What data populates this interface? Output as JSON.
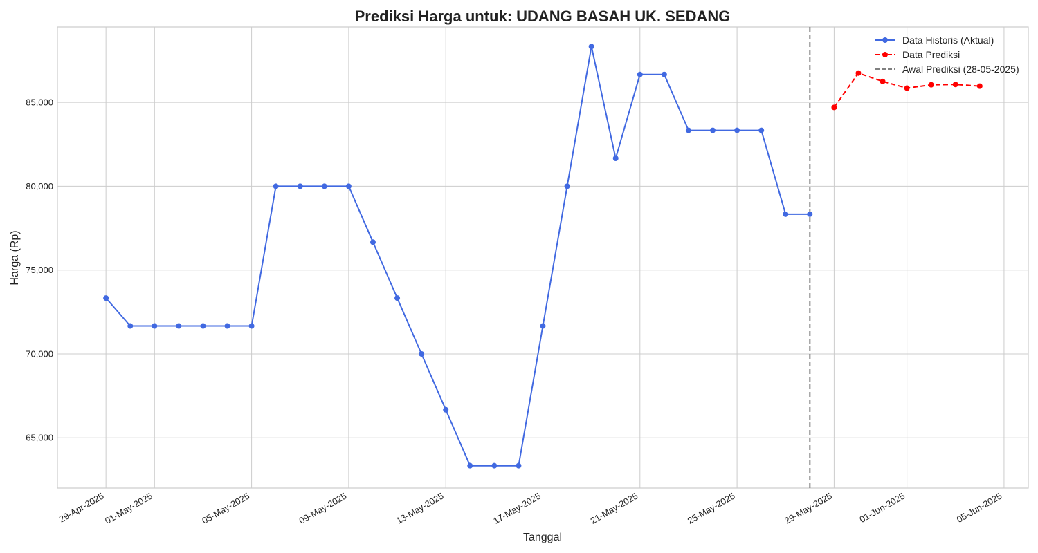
{
  "chart_data": {
    "type": "line",
    "title": "Prediksi Harga untuk: UDANG BASAH UK. SEDANG",
    "xlabel": "Tanggal",
    "ylabel": "Harga (Rp)",
    "ylim": [
      62000,
      89500
    ],
    "xlim": [
      "2025-04-27",
      "2025-06-06"
    ],
    "grid": true,
    "legend_position": "top-right",
    "x_ticks": [
      {
        "date": "2025-04-29",
        "label": "29-Apr-2025"
      },
      {
        "date": "2025-05-01",
        "label": "01-May-2025"
      },
      {
        "date": "2025-05-05",
        "label": "05-May-2025"
      },
      {
        "date": "2025-05-09",
        "label": "09-May-2025"
      },
      {
        "date": "2025-05-13",
        "label": "13-May-2025"
      },
      {
        "date": "2025-05-17",
        "label": "17-May-2025"
      },
      {
        "date": "2025-05-21",
        "label": "21-May-2025"
      },
      {
        "date": "2025-05-25",
        "label": "25-May-2025"
      },
      {
        "date": "2025-05-29",
        "label": "29-May-2025"
      },
      {
        "date": "2025-06-01",
        "label": "01-Jun-2025"
      },
      {
        "date": "2025-06-05",
        "label": "05-Jun-2025"
      }
    ],
    "y_ticks": [
      {
        "value": 65000,
        "label": "65,000"
      },
      {
        "value": 70000,
        "label": "70,000"
      },
      {
        "value": 75000,
        "label": "75,000"
      },
      {
        "value": 80000,
        "label": "80,000"
      },
      {
        "value": 85000,
        "label": "85,000"
      }
    ],
    "series": [
      {
        "name": "Data Historis (Aktual)",
        "color": "#4169e1",
        "line_style": "solid",
        "x": [
          "2025-04-29",
          "2025-04-30",
          "2025-05-01",
          "2025-05-02",
          "2025-05-03",
          "2025-05-04",
          "2025-05-05",
          "2025-05-06",
          "2025-05-07",
          "2025-05-08",
          "2025-05-09",
          "2025-05-10",
          "2025-05-11",
          "2025-05-12",
          "2025-05-13",
          "2025-05-14",
          "2025-05-15",
          "2025-05-16",
          "2025-05-17",
          "2025-05-18",
          "2025-05-19",
          "2025-05-20",
          "2025-05-21",
          "2025-05-22",
          "2025-05-23",
          "2025-05-24",
          "2025-05-25",
          "2025-05-26",
          "2025-05-27",
          "2025-05-28"
        ],
        "values": [
          73333,
          71667,
          71667,
          71667,
          71667,
          71667,
          71667,
          80000,
          80000,
          80000,
          80000,
          76667,
          73333,
          70000,
          66667,
          63333,
          63333,
          63333,
          71667,
          80000,
          88333,
          81667,
          86667,
          86667,
          83333,
          83333,
          83333,
          83333,
          78333,
          78333
        ]
      },
      {
        "name": "Data Prediksi",
        "color": "#ff0000",
        "line_style": "dashed",
        "x": [
          "2025-05-29",
          "2025-05-30",
          "2025-05-31",
          "2025-06-01",
          "2025-06-02",
          "2025-06-03",
          "2025-06-04"
        ],
        "values": [
          84700,
          86750,
          86250,
          85850,
          86050,
          86070,
          85970
        ]
      }
    ],
    "vertical_line": {
      "name": "Awal Prediksi (28-05-2025)",
      "date": "2025-05-28",
      "color": "#808080",
      "line_style": "dashed"
    }
  }
}
